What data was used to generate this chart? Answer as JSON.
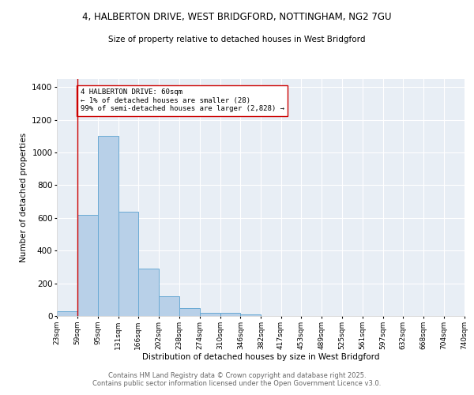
{
  "title1": "4, HALBERTON DRIVE, WEST BRIDGFORD, NOTTINGHAM, NG2 7GU",
  "title2": "Size of property relative to detached houses in West Bridgford",
  "xlabel": "Distribution of detached houses by size in West Bridgford",
  "ylabel": "Number of detached properties",
  "bar_color": "#b8d0e8",
  "bar_edge_color": "#6aaad4",
  "bg_color": "#e8eef5",
  "grid_color": "white",
  "vline_x": 59,
  "vline_color": "#cc0000",
  "annotation_text": "4 HALBERTON DRIVE: 60sqm\n← 1% of detached houses are smaller (28)\n99% of semi-detached houses are larger (2,828) →",
  "annotation_box_color": "white",
  "annotation_box_edgecolor": "#cc0000",
  "bin_edges": [
    23,
    59,
    95,
    131,
    166,
    202,
    238,
    274,
    310,
    346,
    382,
    417,
    453,
    489,
    525,
    561,
    597,
    632,
    668,
    704,
    740
  ],
  "bin_heights": [
    28,
    620,
    1100,
    640,
    290,
    120,
    50,
    20,
    20,
    10,
    0,
    0,
    0,
    0,
    0,
    0,
    0,
    0,
    0,
    0
  ],
  "ylim": [
    0,
    1450
  ],
  "yticks": [
    0,
    200,
    400,
    600,
    800,
    1000,
    1200,
    1400
  ],
  "footer": "Contains HM Land Registry data © Crown copyright and database right 2025.\nContains public sector information licensed under the Open Government Licence v3.0.",
  "footer_color": "#666666",
  "figsize": [
    6.0,
    5.0
  ],
  "dpi": 100
}
